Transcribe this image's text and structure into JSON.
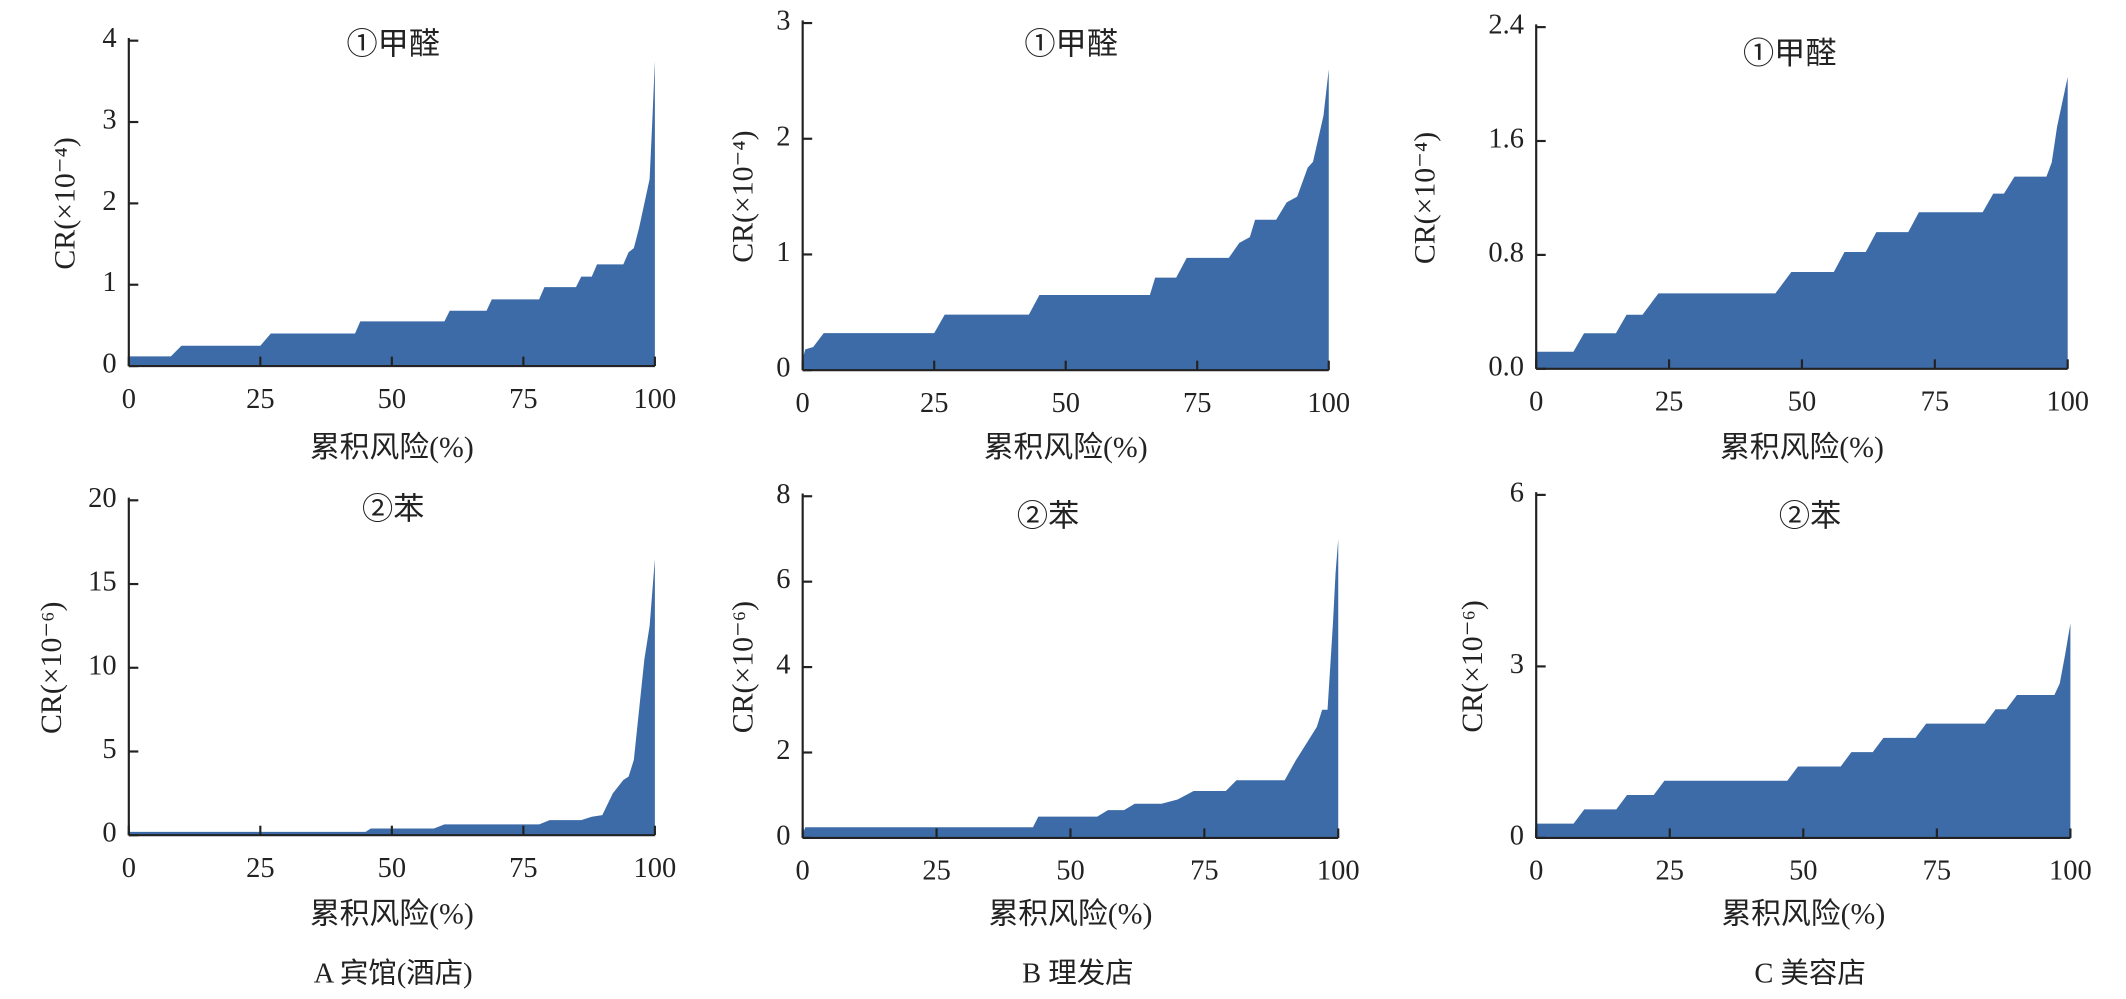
{
  "chart_data": [
    {
      "type": "area",
      "title": "①甲醛",
      "ylabel": "CR(×10⁻⁴)",
      "xlabel": "累积风险(%)",
      "color": "#3d6ba7",
      "x": [
        0,
        8,
        10,
        25,
        27,
        43,
        44,
        60,
        61,
        68,
        69,
        78,
        79,
        85,
        86,
        88,
        89,
        94,
        95,
        96,
        97,
        98,
        99,
        99.5,
        100
      ],
      "values": [
        0.12,
        0.12,
        0.25,
        0.25,
        0.4,
        0.4,
        0.55,
        0.55,
        0.68,
        0.68,
        0.82,
        0.82,
        0.97,
        0.97,
        1.1,
        1.1,
        1.25,
        1.25,
        1.4,
        1.45,
        1.7,
        2.0,
        2.3,
        3.0,
        3.75
      ],
      "xlim": [
        0,
        100
      ],
      "xticks": [
        0,
        25,
        50,
        75,
        100
      ],
      "ylim": [
        0,
        4
      ],
      "yticks": [
        0,
        1,
        2,
        3,
        4
      ]
    },
    {
      "type": "area",
      "title": "①甲醛",
      "ylabel": "CR(×10⁻⁴)",
      "xlabel": "累积风险(%)",
      "color": "#3d6ba7",
      "x": [
        0,
        0.5,
        2,
        4,
        25,
        27,
        43,
        45,
        66,
        67,
        71,
        73,
        81,
        83,
        85,
        86,
        90,
        92,
        94,
        96,
        97,
        98,
        99,
        100
      ],
      "values": [
        0.1,
        0.18,
        0.2,
        0.32,
        0.32,
        0.48,
        0.48,
        0.65,
        0.65,
        0.8,
        0.8,
        0.97,
        0.97,
        1.1,
        1.15,
        1.3,
        1.3,
        1.45,
        1.5,
        1.75,
        1.8,
        2.0,
        2.2,
        2.6
      ],
      "xlim": [
        0,
        100
      ],
      "xticks": [
        0,
        25,
        50,
        75,
        100
      ],
      "ylim": [
        0,
        3
      ],
      "yticks": [
        0,
        1,
        2,
        3
      ]
    },
    {
      "type": "area",
      "title": "①甲醛",
      "ylabel": "CR(×10⁻⁴)",
      "xlabel": "累积风险(%)",
      "color": "#3d6ba7",
      "x": [
        0,
        7,
        9,
        15,
        17,
        20,
        23,
        45,
        48,
        56,
        58,
        62,
        64,
        70,
        72,
        84,
        86,
        88,
        90,
        96,
        97,
        98,
        100
      ],
      "values": [
        0.12,
        0.12,
        0.25,
        0.25,
        0.38,
        0.38,
        0.53,
        0.53,
        0.68,
        0.68,
        0.82,
        0.82,
        0.96,
        0.96,
        1.1,
        1.1,
        1.23,
        1.23,
        1.35,
        1.35,
        1.45,
        1.7,
        2.05
      ],
      "xlim": [
        0,
        100
      ],
      "xticks": [
        0,
        25,
        50,
        75,
        100
      ],
      "ylim": [
        0,
        2.4
      ],
      "yticks": [
        {
          "value": 0,
          "label": "0.0"
        },
        {
          "value": 0.8,
          "label": "0.8"
        },
        {
          "value": 1.6,
          "label": "1.6"
        },
        {
          "value": 2.4,
          "label": "2.4"
        }
      ]
    },
    {
      "type": "area",
      "title": "②苯",
      "ylabel": "CR(×10⁻⁶)",
      "xlabel": "累积风险(%)",
      "color": "#3d6ba7",
      "x": [
        0,
        45,
        46,
        58,
        60,
        78,
        80,
        86,
        88,
        90,
        92,
        94,
        95,
        96,
        97,
        98,
        99,
        100
      ],
      "values": [
        0.2,
        0.2,
        0.4,
        0.4,
        0.65,
        0.65,
        0.9,
        0.9,
        1.1,
        1.2,
        2.5,
        3.3,
        3.5,
        4.5,
        7.5,
        10.5,
        12.5,
        16.5
      ],
      "xlim": [
        0,
        100
      ],
      "xticks": [
        0,
        25,
        50,
        75,
        100
      ],
      "ylim": [
        0,
        20
      ],
      "yticks": [
        0,
        5,
        10,
        15,
        20
      ]
    },
    {
      "type": "area",
      "title": "②苯",
      "ylabel": "CR(×10⁻⁶)",
      "xlabel": "累积风险(%)",
      "color": "#3d6ba7",
      "x": [
        0,
        0.5,
        43,
        44,
        55,
        57,
        60,
        62,
        67,
        70,
        73,
        79,
        81,
        90,
        92,
        94,
        96,
        97,
        98,
        99,
        99.5,
        100
      ],
      "values": [
        0.1,
        0.25,
        0.25,
        0.5,
        0.5,
        0.65,
        0.65,
        0.8,
        0.8,
        0.9,
        1.1,
        1.1,
        1.35,
        1.35,
        1.8,
        2.2,
        2.6,
        3.0,
        3.0,
        5,
        6.2,
        7.0
      ],
      "xlim": [
        0,
        100
      ],
      "xticks": [
        0,
        25,
        50,
        75,
        100
      ],
      "ylim": [
        0,
        8
      ],
      "yticks": [
        0,
        2,
        4,
        6,
        8
      ]
    },
    {
      "type": "area",
      "title": "②苯",
      "ylabel": "CR(×10⁻⁶)",
      "xlabel": "累积风险(%)",
      "color": "#3d6ba7",
      "x": [
        0,
        7,
        9,
        15,
        17,
        22,
        24,
        47,
        49,
        57,
        59,
        63,
        65,
        71,
        73,
        84,
        86,
        88,
        90,
        97,
        98,
        99,
        100
      ],
      "values": [
        0.25,
        0.25,
        0.5,
        0.5,
        0.75,
        0.75,
        1.0,
        1.0,
        1.25,
        1.25,
        1.5,
        1.5,
        1.75,
        1.75,
        2.0,
        2.0,
        2.25,
        2.25,
        2.5,
        2.5,
        2.7,
        3.2,
        3.75
      ],
      "xlim": [
        0,
        100
      ],
      "xticks": [
        0,
        25,
        50,
        75,
        100
      ],
      "ylim": [
        0,
        6
      ],
      "yticks": [
        0,
        3,
        6
      ]
    }
  ],
  "panel_captions": [
    "A  宾馆(酒店)",
    "B  理发店",
    "C  美容店"
  ]
}
